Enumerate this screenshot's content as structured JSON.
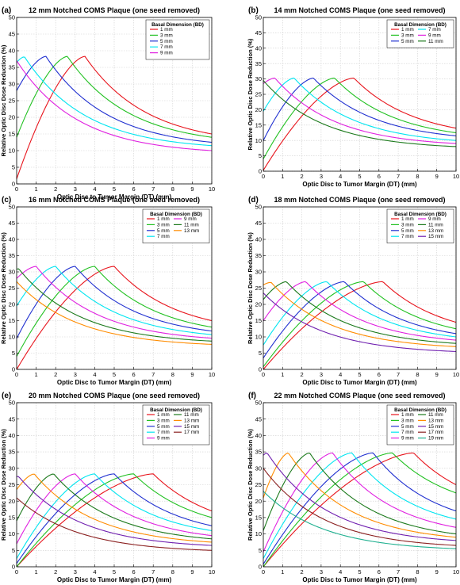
{
  "chart_data": [
    {
      "panel": "(a)",
      "type": "line",
      "title": "12 mm Notched COMS Plaque (one seed removed)",
      "xlabel": "Optic Disc to Tumor Margin (DT) (mm)",
      "ylabel": "Relative Optic Disc Dose Reduction (%)",
      "xlim": [
        0,
        10
      ],
      "ylim": [
        0,
        50
      ],
      "xticks": [
        "0",
        "1",
        "2",
        "3",
        "4",
        "5",
        "6",
        "7",
        "8",
        "9",
        "10"
      ],
      "yticks": [
        "0",
        "5",
        "10",
        "15",
        "20",
        "25",
        "30",
        "35",
        "40",
        "45",
        "50"
      ],
      "grid": true,
      "legend": {
        "title": "Basal Dimension (BD)",
        "position": "top-right",
        "columns": 1
      },
      "series": [
        {
          "name": "1 mm",
          "color": "#e8141c",
          "peak_x": 3.5,
          "peak_y": 38.3,
          "start_y": 1.5,
          "end_y": 15.0
        },
        {
          "name": "3 mm",
          "color": "#22c122",
          "peak_x": 2.6,
          "peak_y": 38.3,
          "start_y": 14.0,
          "end_y": 14.0
        },
        {
          "name": "5 mm",
          "color": "#2030d0",
          "peak_x": 1.5,
          "peak_y": 38.3,
          "start_y": 28.0,
          "end_y": 12.5
        },
        {
          "name": "7 mm",
          "color": "#00e5f0",
          "peak_x": 0.4,
          "peak_y": 38.2,
          "start_y": 36.5,
          "end_y": 11.5
        },
        {
          "name": "9 mm",
          "color": "#e020e0",
          "peak_x": 0.0,
          "peak_y": 37.0,
          "start_y": 37.0,
          "end_y": 10.0
        }
      ]
    },
    {
      "panel": "(b)",
      "type": "line",
      "title": "14 mm Notched COMS Plaque (one seed removed)",
      "xlabel": "Optic Disc to Tumor Margin (DT) (mm)",
      "ylabel": "Relative Optic Disc Dose Reduction (%)",
      "xlim": [
        0,
        10
      ],
      "ylim": [
        0,
        50
      ],
      "xticks": [
        "0",
        "1",
        "2",
        "3",
        "4",
        "5",
        "6",
        "7",
        "8",
        "9",
        "10"
      ],
      "yticks": [
        "0",
        "5",
        "10",
        "15",
        "20",
        "25",
        "30",
        "35",
        "40",
        "45",
        "50"
      ],
      "grid": true,
      "legend": {
        "title": "Basal Dimension (BD)",
        "position": "top-right",
        "columns": 2
      },
      "series": [
        {
          "name": "1 mm",
          "color": "#e8141c",
          "peak_x": 4.7,
          "peak_y": 30.3,
          "start_y": 0.3,
          "end_y": 14.0
        },
        {
          "name": "3 mm",
          "color": "#22c122",
          "peak_x": 3.7,
          "peak_y": 30.3,
          "start_y": 4.0,
          "end_y": 12.5
        },
        {
          "name": "5 mm",
          "color": "#2030d0",
          "peak_x": 2.6,
          "peak_y": 30.3,
          "start_y": 10.0,
          "end_y": 11.5
        },
        {
          "name": "7 mm",
          "color": "#00e5f0",
          "peak_x": 1.6,
          "peak_y": 30.3,
          "start_y": 19.5,
          "end_y": 10.0
        },
        {
          "name": "9 mm",
          "color": "#e020e0",
          "peak_x": 0.6,
          "peak_y": 30.3,
          "start_y": 28.5,
          "end_y": 9.0
        },
        {
          "name": "11 mm",
          "color": "#1c7a1c",
          "peak_x": 0.0,
          "peak_y": 29.5,
          "start_y": 29.5,
          "end_y": 8.0
        }
      ]
    },
    {
      "panel": "(c)",
      "type": "line",
      "title": "16 mm Notched COMS Plaque (one seed removed)",
      "xlabel": "Optic Disc to Tumor Margin (DT) (mm)",
      "ylabel": "Relative Optic Disc Dose Reduction (%)",
      "xlim": [
        0,
        10
      ],
      "ylim": [
        0,
        50
      ],
      "xticks": [
        "0",
        "1",
        "2",
        "3",
        "4",
        "5",
        "6",
        "7",
        "8",
        "9",
        "10"
      ],
      "yticks": [
        "0",
        "5",
        "10",
        "15",
        "20",
        "25",
        "30",
        "35",
        "40",
        "45",
        "50"
      ],
      "grid": true,
      "legend": {
        "title": "Basal Dimension (BD)",
        "position": "top-right",
        "columns": 2
      },
      "series": [
        {
          "name": "1 mm",
          "color": "#e8141c",
          "peak_x": 5.0,
          "peak_y": 31.7,
          "start_y": 0.0,
          "end_y": 15.0
        },
        {
          "name": "3 mm",
          "color": "#22c122",
          "peak_x": 4.0,
          "peak_y": 31.7,
          "start_y": 4.0,
          "end_y": 13.0
        },
        {
          "name": "5 mm",
          "color": "#2030d0",
          "peak_x": 3.0,
          "peak_y": 31.7,
          "start_y": 9.5,
          "end_y": 11.8
        },
        {
          "name": "7 mm",
          "color": "#00e5f0",
          "peak_x": 2.0,
          "peak_y": 31.7,
          "start_y": 19.5,
          "end_y": 10.7
        },
        {
          "name": "9 mm",
          "color": "#e020e0",
          "peak_x": 1.0,
          "peak_y": 31.7,
          "start_y": 28.0,
          "end_y": 9.6
        },
        {
          "name": "11 mm",
          "color": "#1c7a1c",
          "peak_x": 0.1,
          "peak_y": 31.0,
          "start_y": 30.8,
          "end_y": 8.7
        },
        {
          "name": "13 mm",
          "color": "#ff8c00",
          "peak_x": 0.0,
          "peak_y": 27.0,
          "start_y": 27.0,
          "end_y": 7.7
        }
      ]
    },
    {
      "panel": "(d)",
      "type": "line",
      "title": "18 mm Notched COMS Plaque (one seed removed)",
      "xlabel": "Optic Disc to Tumor Margin (DT) (mm)",
      "ylabel": "Relative Optic Disc Dose Reduction (%)",
      "xlim": [
        0,
        10
      ],
      "ylim": [
        0,
        50
      ],
      "xticks": [
        "0",
        "1",
        "2",
        "3",
        "4",
        "5",
        "6",
        "7",
        "8",
        "9",
        "10"
      ],
      "yticks": [
        "0",
        "5",
        "10",
        "15",
        "20",
        "25",
        "30",
        "35",
        "40",
        "45",
        "50"
      ],
      "grid": true,
      "legend": {
        "title": "Basal Dimension (BD)",
        "position": "top-right",
        "columns": 2
      },
      "series": [
        {
          "name": "1 mm",
          "color": "#e8141c",
          "peak_x": 6.2,
          "peak_y": 27.0,
          "start_y": 0.0,
          "end_y": 14.5
        },
        {
          "name": "3 mm",
          "color": "#22c122",
          "peak_x": 5.2,
          "peak_y": 27.0,
          "start_y": 0.8,
          "end_y": 12.5
        },
        {
          "name": "5 mm",
          "color": "#2030d0",
          "peak_x": 4.2,
          "peak_y": 27.0,
          "start_y": 3.5,
          "end_y": 11.0
        },
        {
          "name": "7 mm",
          "color": "#00e5f0",
          "peak_x": 3.3,
          "peak_y": 27.0,
          "start_y": 7.5,
          "end_y": 10.0
        },
        {
          "name": "9 mm",
          "color": "#e020e0",
          "peak_x": 2.2,
          "peak_y": 27.0,
          "start_y": 15.0,
          "end_y": 9.0
        },
        {
          "name": "11 mm",
          "color": "#1c7a1c",
          "peak_x": 1.2,
          "peak_y": 27.0,
          "start_y": 21.5,
          "end_y": 8.0
        },
        {
          "name": "13 mm",
          "color": "#ff8c00",
          "peak_x": 0.4,
          "peak_y": 26.8,
          "start_y": 26.0,
          "end_y": 7.0
        },
        {
          "name": "15 mm",
          "color": "#7020b0",
          "peak_x": 0.0,
          "peak_y": 23.5,
          "start_y": 23.5,
          "end_y": 5.5
        }
      ]
    },
    {
      "panel": "(e)",
      "type": "line",
      "title": "20 mm Notched COMS Plaque (one seed removed)",
      "xlabel": "Optic Disc to Tumor Margin (DT) (mm)",
      "ylabel": "Relative Optic Disc Dose Reduction (%)",
      "xlim": [
        0,
        10
      ],
      "ylim": [
        0,
        50
      ],
      "xticks": [
        "0",
        "1",
        "2",
        "3",
        "4",
        "5",
        "6",
        "7",
        "8",
        "9",
        "10"
      ],
      "yticks": [
        "0",
        "5",
        "10",
        "15",
        "20",
        "25",
        "30",
        "35",
        "40",
        "45",
        "50"
      ],
      "grid": true,
      "legend": {
        "title": "Basal Dimension (BD)",
        "position": "top-right",
        "columns": 2
      },
      "series": [
        {
          "name": "1 mm",
          "color": "#e8141c",
          "peak_x": 7.0,
          "peak_y": 28.3,
          "start_y": 0.0,
          "end_y": 17.0
        },
        {
          "name": "3 mm",
          "color": "#22c122",
          "peak_x": 6.0,
          "peak_y": 28.3,
          "start_y": 0.0,
          "end_y": 15.0
        },
        {
          "name": "5 mm",
          "color": "#2030d0",
          "peak_x": 5.0,
          "peak_y": 28.3,
          "start_y": 1.0,
          "end_y": 12.5
        },
        {
          "name": "7 mm",
          "color": "#00e5f0",
          "peak_x": 4.0,
          "peak_y": 28.3,
          "start_y": 2.5,
          "end_y": 11.0
        },
        {
          "name": "9 mm",
          "color": "#e020e0",
          "peak_x": 3.0,
          "peak_y": 28.3,
          "start_y": 7.0,
          "end_y": 9.5
        },
        {
          "name": "11 mm",
          "color": "#1c7a1c",
          "peak_x": 1.9,
          "peak_y": 28.3,
          "start_y": 14.0,
          "end_y": 8.5
        },
        {
          "name": "13 mm",
          "color": "#ff8c00",
          "peak_x": 0.9,
          "peak_y": 28.3,
          "start_y": 23.5,
          "end_y": 7.5
        },
        {
          "name": "15 mm",
          "color": "#7020b0",
          "peak_x": 0.1,
          "peak_y": 27.5,
          "start_y": 27.5,
          "end_y": 6.5
        },
        {
          "name": "17 mm",
          "color": "#8b2020",
          "peak_x": 0.0,
          "peak_y": 21.0,
          "start_y": 21.0,
          "end_y": 5.0
        }
      ]
    },
    {
      "panel": "(f)",
      "type": "line",
      "title": "22 mm Notched COMS Plaque (one seed removed)",
      "xlabel": "Optic Disc to Tumor Margin (DT) (mm)",
      "ylabel": "Relative Optic Disc Dose Reduction (%)",
      "xlim": [
        0,
        10
      ],
      "ylim": [
        0,
        50
      ],
      "xticks": [
        "0",
        "1",
        "2",
        "3",
        "4",
        "5",
        "6",
        "7",
        "8",
        "9",
        "10"
      ],
      "yticks": [
        "0",
        "5",
        "10",
        "15",
        "20",
        "25",
        "30",
        "35",
        "40",
        "45",
        "50"
      ],
      "grid": true,
      "legend": {
        "title": "Basal Dimension (BD)",
        "position": "top-right",
        "columns": 2
      },
      "series": [
        {
          "name": "1 mm",
          "color": "#e8141c",
          "peak_x": 7.8,
          "peak_y": 34.7,
          "start_y": 0.0,
          "end_y": 25.0
        },
        {
          "name": "3 mm",
          "color": "#22c122",
          "peak_x": 6.7,
          "peak_y": 34.7,
          "start_y": 0.0,
          "end_y": 22.5
        },
        {
          "name": "5 mm",
          "color": "#2030d0",
          "peak_x": 5.7,
          "peak_y": 34.7,
          "start_y": 0.8,
          "end_y": 17.0
        },
        {
          "name": "7 mm",
          "color": "#00e5f0",
          "peak_x": 4.6,
          "peak_y": 34.7,
          "start_y": 2.5,
          "end_y": 14.5
        },
        {
          "name": "9 mm",
          "color": "#e020e0",
          "peak_x": 3.6,
          "peak_y": 34.7,
          "start_y": 4.5,
          "end_y": 12.0
        },
        {
          "name": "11 mm",
          "color": "#1c7a1c",
          "peak_x": 2.4,
          "peak_y": 34.7,
          "start_y": 11.0,
          "end_y": 10.0
        },
        {
          "name": "13 mm",
          "color": "#ff8c00",
          "peak_x": 1.3,
          "peak_y": 34.7,
          "start_y": 21.0,
          "end_y": 9.0
        },
        {
          "name": "15 mm",
          "color": "#7020b0",
          "peak_x": 0.2,
          "peak_y": 34.7,
          "start_y": 34.0,
          "end_y": 8.0
        },
        {
          "name": "17 mm",
          "color": "#8b2020",
          "peak_x": 0.0,
          "peak_y": 30.0,
          "start_y": 30.0,
          "end_y": 6.5
        },
        {
          "name": "19 mm",
          "color": "#20b090",
          "peak_x": 0.0,
          "peak_y": 23.0,
          "start_y": 23.0,
          "end_y": 5.5
        }
      ]
    }
  ]
}
